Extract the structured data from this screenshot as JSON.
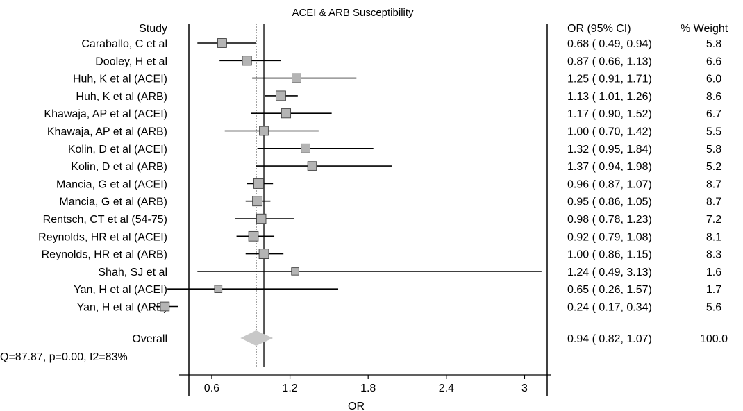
{
  "chart_data": {
    "type": "forest",
    "title": "ACEI & ARB Susceptibility",
    "xlabel": "OR",
    "xlim": [
      0.35,
      3.2
    ],
    "xticks": [
      0.6,
      1.2,
      1.8,
      2.4,
      3
    ],
    "xtick_labels": [
      "0.6",
      "1.2",
      "1.8",
      "2.4",
      "3"
    ],
    "reference_line": 1.0,
    "pooled_line": 0.94,
    "headers": {
      "study": "Study",
      "ci": "OR (95% CI)",
      "weight": "% Weight"
    },
    "studies": [
      {
        "name": "Caraballo, C et al",
        "or": 0.68,
        "lo": 0.49,
        "hi": 0.94,
        "ci_text": "0.68 (  0.49,  0.94)",
        "weight": "5.8"
      },
      {
        "name": "Dooley, H et al",
        "or": 0.87,
        "lo": 0.66,
        "hi": 1.13,
        "ci_text": "0.87 (  0.66,  1.13)",
        "weight": "6.6"
      },
      {
        "name": "Huh, K et al (ACEI)",
        "or": 1.25,
        "lo": 0.91,
        "hi": 1.71,
        "ci_text": "1.25 (  0.91,  1.71)",
        "weight": "6.0"
      },
      {
        "name": "Huh, K et al (ARB)",
        "or": 1.13,
        "lo": 1.01,
        "hi": 1.26,
        "ci_text": "1.13 (  1.01,  1.26)",
        "weight": "8.6"
      },
      {
        "name": "Khawaja, AP et al (ACEI)",
        "or": 1.17,
        "lo": 0.9,
        "hi": 1.52,
        "ci_text": "1.17 (  0.90,  1.52)",
        "weight": "6.7"
      },
      {
        "name": "Khawaja, AP et al (ARB)",
        "or": 1.0,
        "lo": 0.7,
        "hi": 1.42,
        "ci_text": "1.00 (  0.70,  1.42)",
        "weight": "5.5"
      },
      {
        "name": "Kolin, D et al (ACEI)",
        "or": 1.32,
        "lo": 0.95,
        "hi": 1.84,
        "ci_text": "1.32 (  0.95,  1.84)",
        "weight": "5.8"
      },
      {
        "name": "Kolin, D et al (ARB)",
        "or": 1.37,
        "lo": 0.94,
        "hi": 1.98,
        "ci_text": "1.37 (  0.94,  1.98)",
        "weight": "5.2"
      },
      {
        "name": "Mancia, G et al (ACEI)",
        "or": 0.96,
        "lo": 0.87,
        "hi": 1.07,
        "ci_text": "0.96 (  0.87,  1.07)",
        "weight": "8.7"
      },
      {
        "name": "Mancia, G et al (ARB)",
        "or": 0.95,
        "lo": 0.86,
        "hi": 1.05,
        "ci_text": "0.95 (  0.86,  1.05)",
        "weight": "8.7"
      },
      {
        "name": "Rentsch, CT et al (54-75)",
        "or": 0.98,
        "lo": 0.78,
        "hi": 1.23,
        "ci_text": "0.98 (  0.78,  1.23)",
        "weight": "7.2"
      },
      {
        "name": "Reynolds, HR et al (ACEI)",
        "or": 0.92,
        "lo": 0.79,
        "hi": 1.08,
        "ci_text": "0.92 (  0.79,  1.08)",
        "weight": "8.1"
      },
      {
        "name": "Reynolds, HR et al (ARB)",
        "or": 1.0,
        "lo": 0.86,
        "hi": 1.15,
        "ci_text": "1.00 (  0.86,  1.15)",
        "weight": "8.3"
      },
      {
        "name": "Shah, SJ et al",
        "or": 1.24,
        "lo": 0.49,
        "hi": 3.13,
        "ci_text": "1.24 (  0.49,  3.13)",
        "weight": "1.6"
      },
      {
        "name": "Yan, H et al (ACEI)",
        "or": 0.65,
        "lo": 0.26,
        "hi": 1.57,
        "ci_text": "0.65 (  0.26,  1.57)",
        "weight": "1.7"
      },
      {
        "name": "Yan, H et al (ARB)",
        "or": 0.24,
        "lo": 0.17,
        "hi": 0.34,
        "ci_text": "0.24 (  0.17,  0.34)",
        "weight": "5.6"
      }
    ],
    "overall": {
      "name": "Overall",
      "or": 0.94,
      "lo": 0.82,
      "hi": 1.07,
      "ci_text": "0.94 (  0.82,  1.07)",
      "weight": "100.0"
    },
    "heterogeneity": "Q=87.87, p=0.00, I2=83%",
    "colors": {
      "box": "#b4b4b4",
      "box_stroke": "#404040",
      "diamond": "#c8c8c8",
      "line": "#000000"
    }
  }
}
